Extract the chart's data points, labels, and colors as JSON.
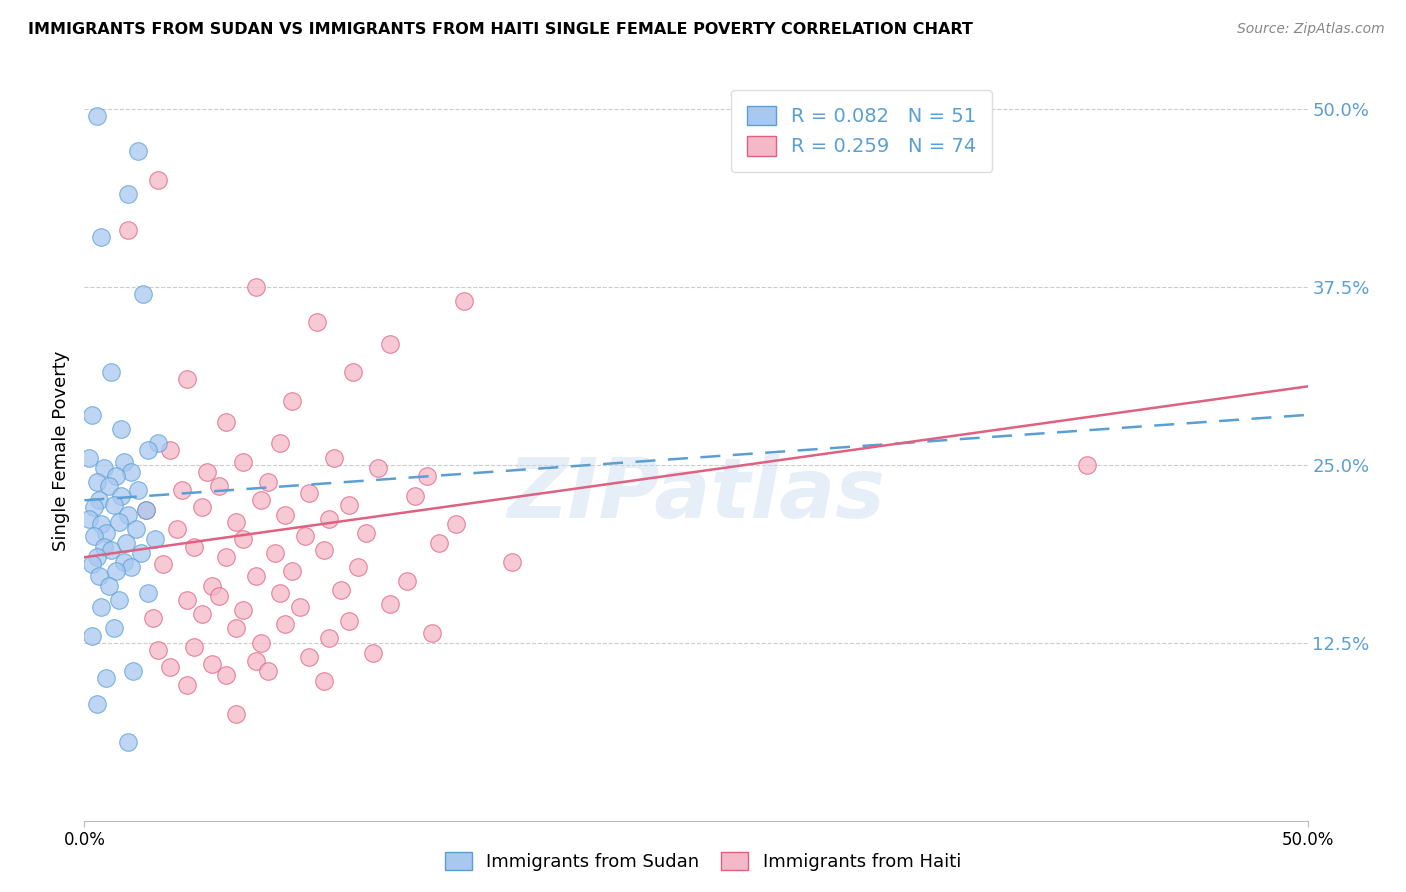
{
  "title": "IMMIGRANTS FROM SUDAN VS IMMIGRANTS FROM HAITI SINGLE FEMALE POVERTY CORRELATION CHART",
  "source": "Source: ZipAtlas.com",
  "ylabel": "Single Female Poverty",
  "ytick_values": [
    12.5,
    25.0,
    37.5,
    50.0
  ],
  "xtick_labels": [
    "0.0%",
    "50.0%"
  ],
  "xtick_positions": [
    0,
    50
  ],
  "xlim": [
    0,
    50
  ],
  "ylim": [
    0,
    52
  ],
  "sudan_R": "0.082",
  "sudan_N": "51",
  "haiti_R": "0.259",
  "haiti_N": "74",
  "sudan_color": "#a8c8f0",
  "haiti_color": "#f5b8c8",
  "sudan_edge_color": "#5a9fd4",
  "haiti_edge_color": "#e06080",
  "sudan_line_color": "#5a9fd4",
  "haiti_line_color": "#e06080",
  "grid_color": "#cccccc",
  "right_tick_color": "#5a9fd4",
  "watermark": "ZIPatlas",
  "legend_label_sudan": "Immigrants from Sudan",
  "legend_label_haiti": "Immigrants from Haiti",
  "sudan_points_x": [
    0.5,
    2.2,
    1.8,
    0.7,
    2.4,
    1.1,
    0.3,
    1.5,
    3.0,
    2.6,
    0.2,
    1.6,
    0.8,
    1.9,
    1.3,
    0.5,
    1.0,
    2.2,
    1.5,
    0.6,
    1.2,
    0.4,
    2.5,
    1.8,
    0.2,
    1.4,
    0.7,
    2.1,
    0.9,
    0.4,
    2.9,
    1.7,
    0.8,
    1.1,
    2.3,
    0.5,
    1.6,
    0.3,
    1.9,
    1.3,
    0.6,
    1.0,
    2.6,
    1.4,
    0.7,
    1.2,
    0.3,
    2.0,
    0.9,
    0.5,
    1.8
  ],
  "sudan_points_y": [
    49.5,
    47.0,
    44.0,
    41.0,
    37.0,
    31.5,
    28.5,
    27.5,
    26.5,
    26.0,
    25.5,
    25.2,
    24.8,
    24.5,
    24.2,
    23.8,
    23.5,
    23.2,
    22.8,
    22.5,
    22.2,
    22.0,
    21.8,
    21.5,
    21.2,
    21.0,
    20.8,
    20.5,
    20.2,
    20.0,
    19.8,
    19.5,
    19.2,
    19.0,
    18.8,
    18.5,
    18.2,
    18.0,
    17.8,
    17.5,
    17.2,
    16.5,
    16.0,
    15.5,
    15.0,
    13.5,
    13.0,
    10.5,
    10.0,
    8.2,
    5.5
  ],
  "haiti_points_x": [
    3.0,
    1.8,
    7.0,
    9.5,
    12.5,
    11.0,
    8.5,
    5.8,
    4.2,
    15.5,
    8.0,
    3.5,
    10.2,
    6.5,
    12.0,
    5.0,
    14.0,
    7.5,
    5.5,
    4.0,
    9.2,
    13.5,
    7.2,
    10.8,
    4.8,
    2.5,
    8.2,
    10.0,
    6.2,
    15.2,
    3.8,
    11.5,
    9.0,
    6.5,
    14.5,
    4.5,
    9.8,
    7.8,
    5.8,
    17.5,
    3.2,
    11.2,
    8.5,
    7.0,
    13.2,
    5.2,
    10.5,
    8.0,
    5.5,
    4.2,
    12.5,
    8.8,
    6.5,
    4.8,
    2.8,
    10.8,
    8.2,
    6.2,
    41.0,
    14.2,
    10.0,
    7.2,
    4.5,
    3.0,
    11.8,
    9.2,
    7.0,
    5.2,
    3.5,
    7.5,
    5.8,
    9.8,
    4.2,
    6.2
  ],
  "haiti_points_y": [
    45.0,
    41.5,
    37.5,
    35.0,
    33.5,
    31.5,
    29.5,
    28.0,
    31.0,
    36.5,
    26.5,
    26.0,
    25.5,
    25.2,
    24.8,
    24.5,
    24.2,
    23.8,
    23.5,
    23.2,
    23.0,
    22.8,
    22.5,
    22.2,
    22.0,
    21.8,
    21.5,
    21.2,
    21.0,
    20.8,
    20.5,
    20.2,
    20.0,
    19.8,
    19.5,
    19.2,
    19.0,
    18.8,
    18.5,
    18.2,
    18.0,
    17.8,
    17.5,
    17.2,
    16.8,
    16.5,
    16.2,
    16.0,
    15.8,
    15.5,
    15.2,
    15.0,
    14.8,
    14.5,
    14.2,
    14.0,
    13.8,
    13.5,
    25.0,
    13.2,
    12.8,
    12.5,
    12.2,
    12.0,
    11.8,
    11.5,
    11.2,
    11.0,
    10.8,
    10.5,
    10.2,
    9.8,
    9.5,
    7.5
  ],
  "sudan_line_x": [
    0,
    50
  ],
  "sudan_line_y": [
    22.5,
    28.5
  ],
  "haiti_line_x": [
    0,
    50
  ],
  "haiti_line_y": [
    18.5,
    30.5
  ]
}
